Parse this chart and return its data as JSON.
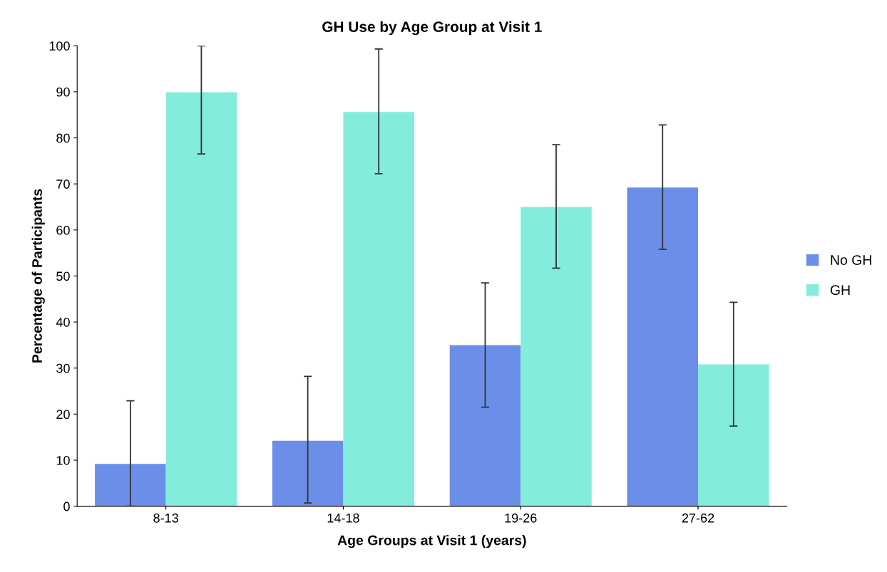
{
  "chart_data": {
    "type": "bar",
    "title": "GH Use by Age Group at Visit 1",
    "xlabel": "Age Groups at Visit 1 (years)",
    "ylabel": "Percentage of Participants",
    "categories": [
      "8-13",
      "14-18",
      "19-26",
      "27-62"
    ],
    "series": [
      {
        "name": "No GH",
        "color": "#6b8fe8",
        "values": [
          9.2,
          14.2,
          35.0,
          69.2
        ],
        "errors": [
          [
            0,
            22.9
          ],
          [
            0.7,
            28.2
          ],
          [
            21.5,
            48.5
          ],
          [
            55.8,
            82.8
          ]
        ]
      },
      {
        "name": "GH",
        "color": "#84ecdc",
        "values": [
          89.9,
          85.6,
          65.0,
          30.8
        ],
        "errors": [
          [
            76.5,
            100
          ],
          [
            72.2,
            99.3
          ],
          [
            51.7,
            78.5
          ],
          [
            17.4,
            44.3
          ]
        ]
      }
    ],
    "ylim": [
      0,
      100
    ],
    "yticks": [
      0,
      10,
      20,
      30,
      40,
      50,
      60,
      70,
      80,
      90,
      100
    ],
    "grid": false,
    "legend": "right"
  }
}
